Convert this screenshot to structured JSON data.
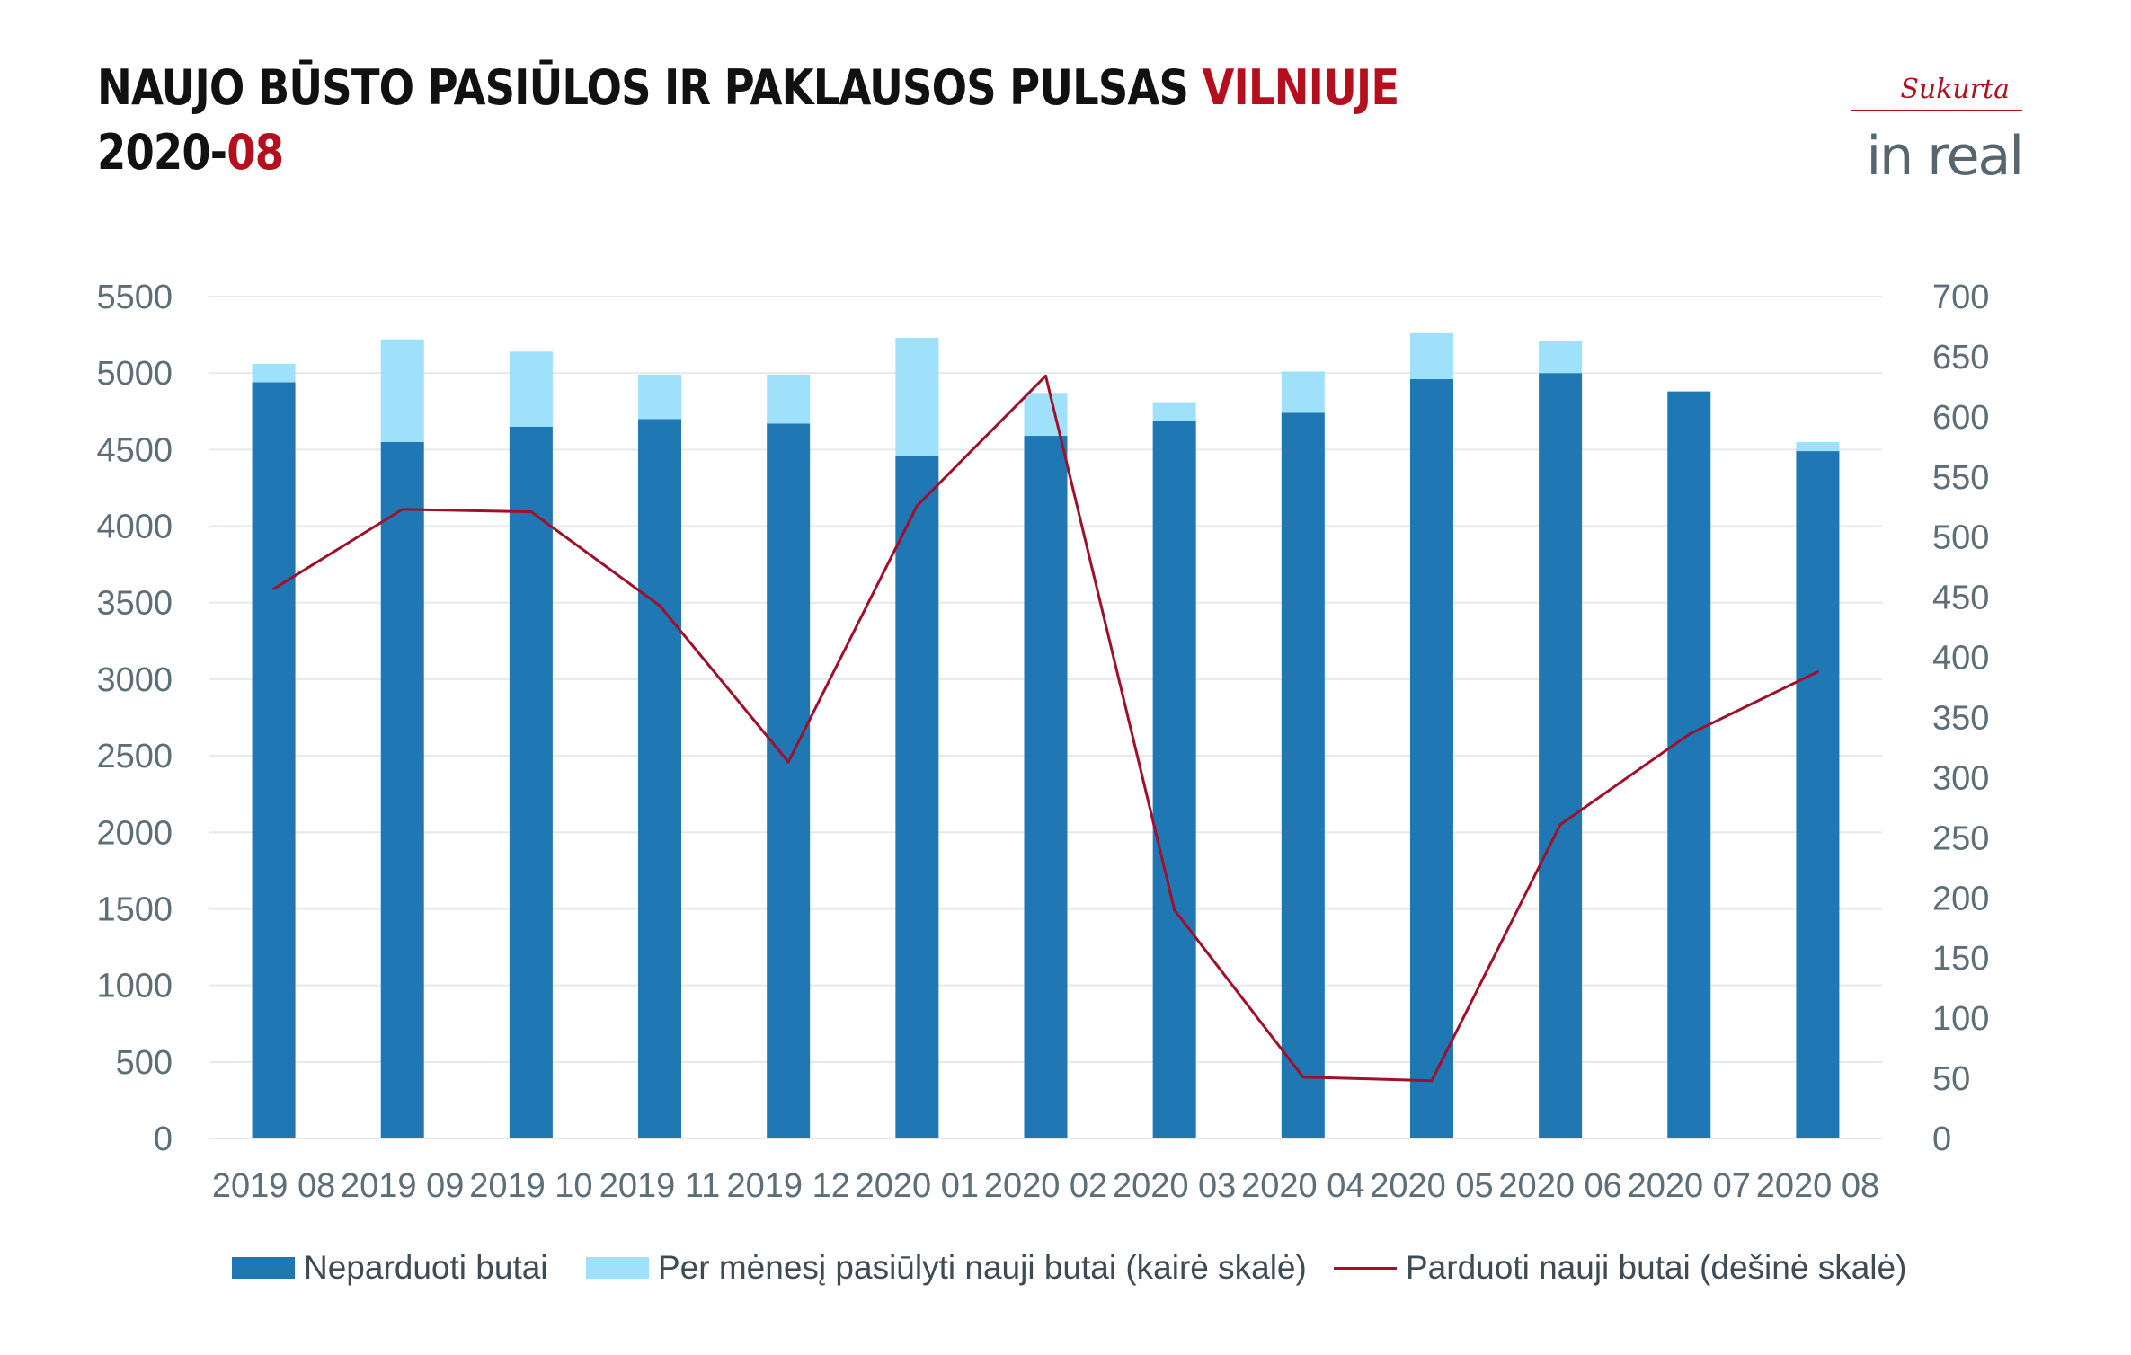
{
  "header": {
    "title_part1": "NAUJO BŪSTO PASIŪLOS IR PAKLAUSOS PULSAS ",
    "title_highlight": "VILNIUJE",
    "subtitle_part1": "2020-",
    "subtitle_highlight": "08"
  },
  "logo": {
    "signature": "Sukurta",
    "brand": "in real"
  },
  "colors": {
    "unsold": "#1f77b4",
    "offered": "#9fe1fb",
    "sold": "#a0102a",
    "accent": "#b50f1e",
    "grid": "#e6e9ec"
  },
  "chart_data": {
    "type": "bar",
    "categories": [
      "2019 08",
      "2019 09",
      "2019 10",
      "2019 11",
      "2019 12",
      "2020 01",
      "2020 02",
      "2020 03",
      "2020 04",
      "2020 05",
      "2020 06",
      "2020 07",
      "2020 08"
    ],
    "series": [
      {
        "name": "Neparduoti butai",
        "type": "bar",
        "stack": "left",
        "axis": "left",
        "values": [
          4940,
          4550,
          4650,
          4700,
          4670,
          4460,
          4590,
          4690,
          4740,
          4960,
          5000,
          4880,
          4490
        ]
      },
      {
        "name": "Per mėnesį pasiūlyti nauji butai (kairė skalė)",
        "type": "bar",
        "stack": "left",
        "axis": "left",
        "values": [
          120,
          670,
          490,
          290,
          320,
          770,
          280,
          120,
          270,
          300,
          210,
          0,
          60
        ]
      },
      {
        "name": "Parduoti nauji butai (dešinė skalė)",
        "type": "line",
        "axis": "right",
        "values": [
          457,
          523,
          521,
          443,
          313,
          526,
          634,
          190,
          51,
          48,
          261,
          336,
          388
        ]
      }
    ],
    "yleft": {
      "min": 0,
      "max": 5500,
      "step": 500
    },
    "yright": {
      "min": 0,
      "max": 700,
      "step": 50
    },
    "grid": true,
    "legend_position": "bottom"
  },
  "legend": [
    {
      "label": "Neparduoti butai"
    },
    {
      "label": "Per mėnesį pasiūlyti nauji butai (kairė skalė)"
    },
    {
      "label": "Parduoti nauji butai (dešinė skalė)"
    }
  ]
}
